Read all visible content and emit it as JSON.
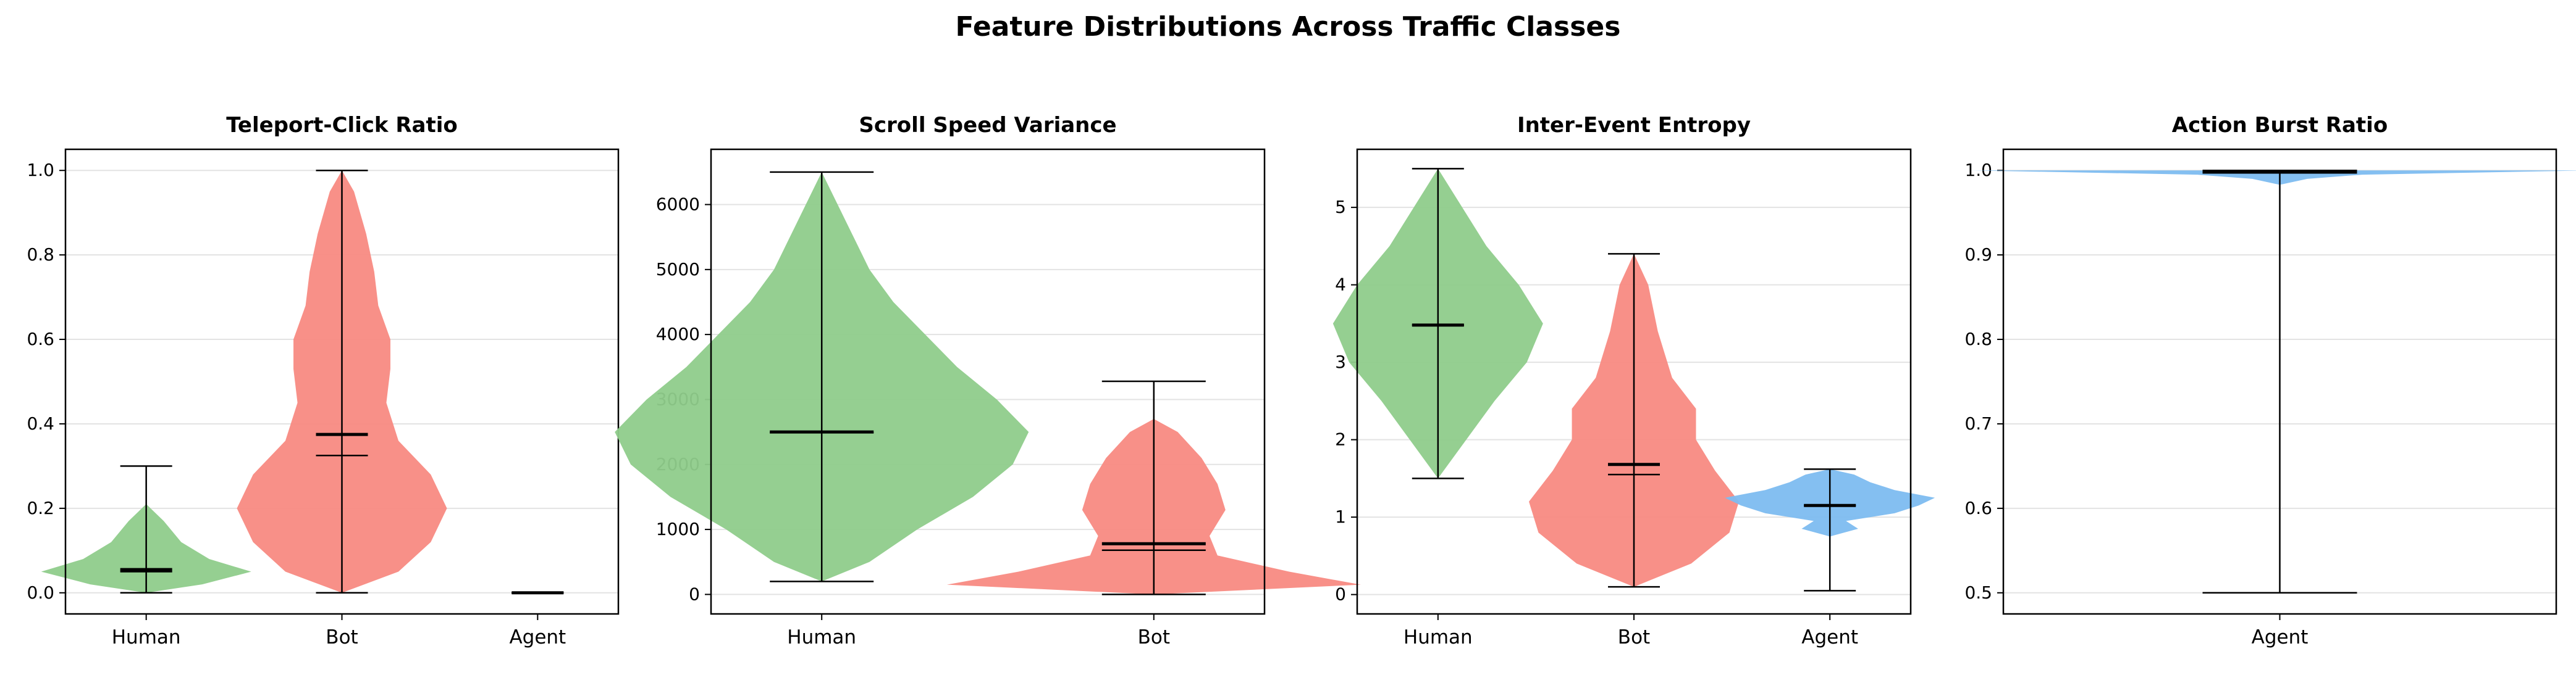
{
  "figure": {
    "title": "Feature Distributions Across Traffic Classes"
  },
  "colors": {
    "Human": "#8fcc8b",
    "Bot": "#f88a82",
    "Agent": "#7dbcf0",
    "grid": "#e3e3e3",
    "ink": "#000000"
  },
  "chart_data": [
    {
      "type": "violin",
      "title": "Teleport-Click Ratio",
      "categories": [
        "Human",
        "Bot",
        "Agent"
      ],
      "ylim": [
        -0.05,
        1.05
      ],
      "yticks": [
        0.0,
        0.2,
        0.4,
        0.6,
        0.8,
        1.0
      ],
      "ytick_labels": [
        "0.0",
        "0.2",
        "0.4",
        "0.6",
        "0.8",
        "1.0"
      ],
      "grid": "y",
      "series": [
        {
          "name": "Human",
          "min": 0.0,
          "max": 0.3,
          "mean": 0.055,
          "median": 0.05,
          "density": [
            [
              0.0,
              0.0
            ],
            [
              0.02,
              0.16
            ],
            [
              0.05,
              0.3
            ],
            [
              0.08,
              0.18
            ],
            [
              0.12,
              0.1
            ],
            [
              0.17,
              0.05
            ],
            [
              0.21,
              0.0
            ]
          ]
        },
        {
          "name": "Bot",
          "min": 0.0,
          "max": 1.0,
          "mean": 0.375,
          "median": 0.325,
          "density": [
            [
              0.0,
              0.0
            ],
            [
              0.05,
              0.14
            ],
            [
              0.12,
              0.22
            ],
            [
              0.2,
              0.26
            ],
            [
              0.28,
              0.22
            ],
            [
              0.36,
              0.14
            ],
            [
              0.45,
              0.11
            ],
            [
              0.53,
              0.12
            ],
            [
              0.6,
              0.12
            ],
            [
              0.68,
              0.09
            ],
            [
              0.76,
              0.08
            ],
            [
              0.85,
              0.06
            ],
            [
              0.95,
              0.03
            ],
            [
              1.0,
              0.0
            ]
          ]
        },
        {
          "name": "Agent",
          "min": 0.0,
          "max": 0.0,
          "mean": 0.0,
          "median": 0.0,
          "density": []
        }
      ]
    },
    {
      "type": "violin",
      "title": "Scroll Speed Variance",
      "categories": [
        "Human",
        "Bot"
      ],
      "ylim": [
        -300,
        6850
      ],
      "yticks": [
        0,
        1000,
        2000,
        3000,
        4000,
        5000,
        6000
      ],
      "ytick_labels": [
        "0",
        "1000",
        "2000",
        "3000",
        "4000",
        "5000",
        "6000"
      ],
      "grid": "y",
      "series": [
        {
          "name": "Human",
          "min": 200,
          "max": 6500,
          "mean": 2500,
          "median": 2490,
          "density": [
            [
              200,
              0.0
            ],
            [
              500,
              0.06
            ],
            [
              1000,
              0.12
            ],
            [
              1500,
              0.19
            ],
            [
              2000,
              0.24
            ],
            [
              2500,
              0.26
            ],
            [
              3000,
              0.22
            ],
            [
              3500,
              0.17
            ],
            [
              4000,
              0.13
            ],
            [
              4500,
              0.09
            ],
            [
              5000,
              0.06
            ],
            [
              5500,
              0.04
            ],
            [
              6000,
              0.02
            ],
            [
              6500,
              0.0
            ]
          ]
        },
        {
          "name": "Bot",
          "min": 0,
          "max": 3280,
          "mean": 780,
          "median": 680,
          "density": [
            [
              0,
              0.0
            ],
            [
              150,
              0.26
            ],
            [
              350,
              0.17
            ],
            [
              600,
              0.08
            ],
            [
              900,
              0.07
            ],
            [
              1300,
              0.09
            ],
            [
              1700,
              0.08
            ],
            [
              2100,
              0.06
            ],
            [
              2500,
              0.03
            ],
            [
              2700,
              0.0
            ]
          ]
        }
      ]
    },
    {
      "type": "violin",
      "title": "Inter-Event Entropy",
      "categories": [
        "Human",
        "Bot",
        "Agent"
      ],
      "ylim": [
        -0.25,
        5.75
      ],
      "yticks": [
        0,
        1,
        2,
        3,
        4,
        5
      ],
      "ytick_labels": [
        "0",
        "1",
        "2",
        "3",
        "4",
        "5"
      ],
      "grid": "y",
      "series": [
        {
          "name": "Human",
          "min": 1.5,
          "max": 5.5,
          "mean": 3.48,
          "median": 3.48,
          "density": [
            [
              1.5,
              0.0
            ],
            [
              2.0,
              0.07
            ],
            [
              2.5,
              0.14
            ],
            [
              3.0,
              0.22
            ],
            [
              3.5,
              0.26
            ],
            [
              4.0,
              0.2
            ],
            [
              4.5,
              0.12
            ],
            [
              5.0,
              0.06
            ],
            [
              5.5,
              0.0
            ]
          ]
        },
        {
          "name": "Bot",
          "min": 0.1,
          "max": 4.4,
          "mean": 1.68,
          "median": 1.55,
          "density": [
            [
              0.1,
              0.0
            ],
            [
              0.4,
              0.12
            ],
            [
              0.8,
              0.2
            ],
            [
              1.2,
              0.22
            ],
            [
              1.6,
              0.17
            ],
            [
              2.0,
              0.13
            ],
            [
              2.4,
              0.13
            ],
            [
              2.8,
              0.08
            ],
            [
              3.4,
              0.05
            ],
            [
              4.0,
              0.03
            ],
            [
              4.4,
              0.0
            ]
          ]
        },
        {
          "name": "Agent",
          "min": 0.05,
          "max": 1.62,
          "mean": 1.15,
          "median": 1.15,
          "density": [
            [
              0.75,
              0.0
            ],
            [
              0.85,
              0.07
            ],
            [
              0.95,
              0.04
            ],
            [
              1.05,
              0.16
            ],
            [
              1.15,
              0.22
            ],
            [
              1.25,
              0.26
            ],
            [
              1.35,
              0.16
            ],
            [
              1.45,
              0.1
            ],
            [
              1.55,
              0.06
            ],
            [
              1.62,
              0.0
            ]
          ]
        }
      ]
    },
    {
      "type": "violin",
      "title": "Action Burst Ratio",
      "categories": [
        "Agent"
      ],
      "ylim": [
        0.475,
        1.025
      ],
      "yticks": [
        0.5,
        0.6,
        0.7,
        0.8,
        0.9,
        1.0
      ],
      "ytick_labels": [
        "0.5",
        "0.6",
        "0.7",
        "0.8",
        "0.9",
        "1.0"
      ],
      "grid": "y",
      "series": [
        {
          "name": "Agent",
          "min": 0.5,
          "max": 1.0,
          "mean": 0.998,
          "median": 0.998,
          "density": [
            [
              0.983,
              0.0
            ],
            [
              0.99,
              0.04
            ],
            [
              0.995,
              0.12
            ],
            [
              1.0,
              0.45
            ]
          ]
        }
      ]
    }
  ]
}
